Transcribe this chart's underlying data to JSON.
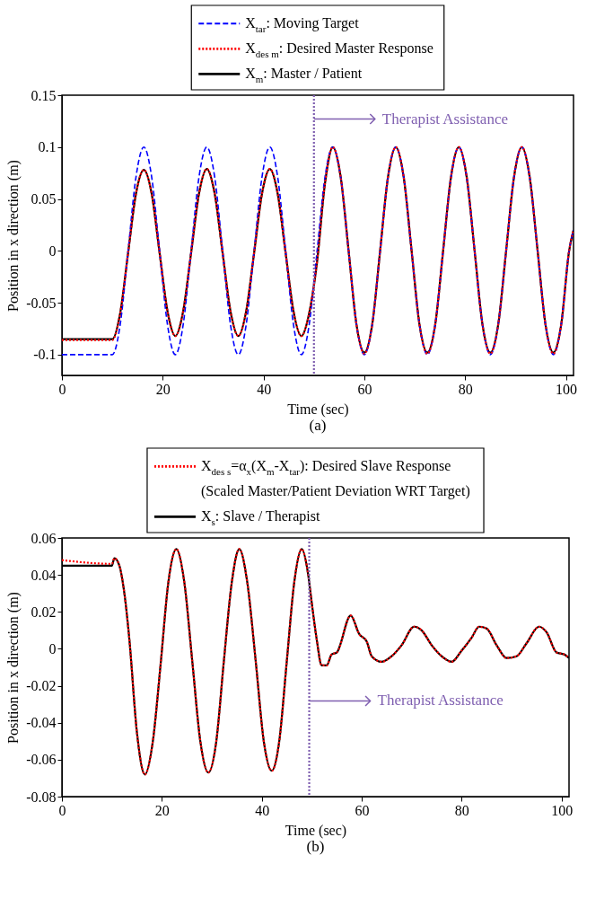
{
  "chart_data": [
    {
      "type": "line",
      "xlabel": "Time (sec)",
      "ylabel": "Position in x direction (m)",
      "xlim": [
        0,
        101.5
      ],
      "xticks": [
        0,
        20,
        40,
        60,
        80,
        100
      ],
      "ylim": [
        -0.12,
        0.15
      ],
      "yticks": [
        -0.1,
        -0.05,
        0,
        0.05,
        0.1,
        0.15
      ],
      "grid": false,
      "legend": "top",
      "marker": "none",
      "series": [
        {
          "name": "X$_{tar}$: Moving Target",
          "color": "#0000ff",
          "line_style": "dashed",
          "x": [
            0,
            10,
            11.56,
            13.13,
            14.69,
            16.25,
            17.81,
            19.38,
            20.94,
            22.5,
            24.06,
            25.63,
            27.19,
            28.75,
            30.31,
            31.88,
            33.44,
            35,
            36.56,
            38.13,
            39.69,
            41.25,
            42.81,
            44.38,
            45.94,
            47.5,
            49.06,
            50.63,
            52.19,
            53.75,
            55.31,
            56.88,
            58.44,
            60,
            61.56,
            63.13,
            64.69,
            66.25,
            67.81,
            69.38,
            70.94,
            72.5,
            74.06,
            75.63,
            77.19,
            78.75,
            80.31,
            81.88,
            83.44,
            85,
            86.56,
            88.13,
            89.69,
            91.25,
            92.81,
            94.38,
            95.94,
            97.5,
            99.06,
            100.63,
            101.5
          ],
          "values": [
            -0.1,
            -0.1,
            -0.071,
            0,
            0.071,
            0.1,
            0.071,
            0,
            -0.071,
            -0.1,
            -0.071,
            0,
            0.071,
            0.1,
            0.071,
            0,
            -0.071,
            -0.1,
            -0.071,
            0,
            0.071,
            0.1,
            0.071,
            0,
            -0.071,
            -0.1,
            -0.071,
            0,
            0.071,
            0.1,
            0.071,
            0,
            -0.071,
            -0.1,
            -0.071,
            0,
            0.071,
            0.1,
            0.071,
            0,
            -0.071,
            -0.1,
            -0.071,
            0,
            0.071,
            0.1,
            0.071,
            0,
            -0.071,
            -0.1,
            -0.071,
            0,
            0.071,
            0.1,
            0.071,
            0,
            -0.071,
            -0.1,
            -0.071,
            0,
            0.02
          ]
        },
        {
          "name": "X$_{des m}$: Desired Master Response",
          "color": "#ff0000",
          "line_style": "dotted",
          "x": [
            0,
            10,
            11.56,
            13.13,
            14.69,
            16.25,
            17.81,
            19.38,
            20.94,
            22.5,
            24.06,
            25.63,
            27.19,
            28.75,
            30.31,
            31.88,
            33.44,
            35,
            36.56,
            38.13,
            39.69,
            41.25,
            42.81,
            44.38,
            45.94,
            47.5,
            49.06,
            50.63,
            52.19,
            53.75,
            55.31,
            56.88,
            58.44,
            60,
            61.56,
            63.13,
            64.69,
            66.25,
            67.81,
            69.38,
            70.94,
            72.5,
            74.06,
            75.63,
            77.19,
            78.75,
            80.31,
            81.88,
            83.44,
            85,
            86.56,
            88.13,
            89.69,
            91.25,
            92.81,
            94.38,
            95.94,
            97.5,
            99.06,
            100.63,
            101.5
          ],
          "values": [
            -0.086,
            -0.086,
            -0.06,
            -0.002,
            0.055,
            0.078,
            0.055,
            -0.002,
            -0.058,
            -0.082,
            -0.058,
            -0.002,
            0.055,
            0.079,
            0.055,
            -0.002,
            -0.058,
            -0.082,
            -0.058,
            -0.002,
            0.055,
            0.079,
            0.055,
            -0.002,
            -0.058,
            -0.082,
            -0.06,
            -0.01,
            0.065,
            0.1,
            0.071,
            0,
            -0.071,
            -0.099,
            -0.071,
            0,
            0.071,
            0.1,
            0.071,
            0,
            -0.071,
            -0.099,
            -0.071,
            0,
            0.071,
            0.1,
            0.071,
            0,
            -0.071,
            -0.099,
            -0.071,
            0,
            0.071,
            0.1,
            0.071,
            0,
            -0.071,
            -0.099,
            -0.071,
            0,
            0.02
          ]
        },
        {
          "name": "X$_{m}$: Master / Patient",
          "color": "#000000",
          "line_style": "solid",
          "x": [
            0,
            10,
            11.56,
            13.13,
            14.69,
            16.25,
            17.81,
            19.38,
            20.94,
            22.5,
            24.06,
            25.63,
            27.19,
            28.75,
            30.31,
            31.88,
            33.44,
            35,
            36.56,
            38.13,
            39.69,
            41.25,
            42.81,
            44.38,
            45.94,
            47.5,
            49.06,
            50.63,
            52.19,
            53.75,
            55.31,
            56.88,
            58.44,
            60,
            61.56,
            63.13,
            64.69,
            66.25,
            67.81,
            69.38,
            70.94,
            72.5,
            74.06,
            75.63,
            77.19,
            78.75,
            80.31,
            81.88,
            83.44,
            85,
            86.56,
            88.13,
            89.69,
            91.25,
            92.81,
            94.38,
            95.94,
            97.5,
            99.06,
            100.63,
            101.5
          ],
          "values": [
            -0.085,
            -0.085,
            -0.06,
            -0.002,
            0.055,
            0.078,
            0.055,
            -0.002,
            -0.058,
            -0.082,
            -0.058,
            -0.002,
            0.055,
            0.079,
            0.055,
            -0.002,
            -0.058,
            -0.082,
            -0.058,
            -0.002,
            0.055,
            0.079,
            0.055,
            -0.002,
            -0.058,
            -0.082,
            -0.06,
            -0.01,
            0.065,
            0.1,
            0.071,
            0,
            -0.071,
            -0.098,
            -0.071,
            0,
            0.071,
            0.1,
            0.071,
            0,
            -0.071,
            -0.098,
            -0.071,
            0,
            0.071,
            0.1,
            0.071,
            0,
            -0.071,
            -0.098,
            -0.071,
            0,
            0.071,
            0.1,
            0.071,
            0,
            -0.071,
            -0.098,
            -0.071,
            0,
            0.02
          ]
        }
      ],
      "ref_lines": [
        {
          "axis": "x",
          "value": 50,
          "color": "#7f5fb0",
          "line_style": "dotted",
          "label": "Therapist Assistance"
        }
      ],
      "annotations": [
        "(a)"
      ]
    },
    {
      "type": "line",
      "xlabel": "Time (sec)",
      "ylabel": "Position in x direction (m)",
      "xlim": [
        0,
        101.5
      ],
      "xticks": [
        0,
        20,
        40,
        60,
        80,
        100
      ],
      "ylim": [
        -0.08,
        0.06
      ],
      "yticks": [
        -0.08,
        -0.06,
        -0.04,
        -0.02,
        0,
        0.02,
        0.04,
        0.06
      ],
      "grid": false,
      "legend": "top",
      "marker": "none",
      "series": [
        {
          "name": "X$_{des s}$=α$_{x}$(X$_{m}$-X$_{tar}$): Desired Slave Response\n(Scaled Master/Patient Deviation WRT Target)",
          "color": "#ff0000",
          "line_style": "dotted",
          "x": [
            0,
            10,
            10.5,
            11.5,
            12.5,
            13.5,
            15,
            16.6,
            18.2,
            19.8,
            21.3,
            22.9,
            24.5,
            26.1,
            27.7,
            29.3,
            30.9,
            32.4,
            34,
            35.5,
            37.1,
            38.8,
            40.4,
            42,
            43.5,
            45,
            46.5,
            48,
            49.3,
            50,
            51,
            52,
            53,
            54,
            55,
            57.8,
            59.5,
            61,
            62,
            64,
            66,
            68,
            70.5,
            72,
            74,
            76,
            78,
            80,
            82,
            83.5,
            85,
            87,
            89,
            91,
            93,
            95.5,
            97,
            99,
            100.5,
            101.5
          ],
          "values": [
            0.048,
            0.046,
            0.049,
            0.045,
            0.03,
            0.005,
            -0.045,
            -0.068,
            -0.05,
            -0.007,
            0.036,
            0.054,
            0.036,
            -0.007,
            -0.05,
            -0.067,
            -0.05,
            -0.007,
            0.036,
            0.054,
            0.036,
            -0.007,
            -0.05,
            -0.066,
            -0.05,
            -0.007,
            0.036,
            0.054,
            0.04,
            0.025,
            0.005,
            -0.009,
            -0.009,
            -0.003,
            -0.002,
            0.018,
            0.008,
            0.004,
            -0.004,
            -0.007,
            -0.004,
            0.002,
            0.012,
            0.01,
            0.002,
            -0.004,
            -0.007,
            -0.001,
            0.006,
            0.012,
            0.011,
            0.002,
            -0.005,
            -0.004,
            0.003,
            0.012,
            0.009,
            -0.002,
            -0.003,
            -0.005
          ]
        },
        {
          "name": "X$_{s}$: Slave / Therapist",
          "color": "#000000",
          "line_style": "solid",
          "x": [
            0,
            10,
            10.5,
            11.5,
            12.5,
            13.5,
            15,
            16.6,
            18.2,
            19.8,
            21.3,
            22.9,
            24.5,
            26.1,
            27.7,
            29.3,
            30.9,
            32.4,
            34,
            35.5,
            37.1,
            38.8,
            40.4,
            42,
            43.5,
            45,
            46.5,
            48,
            49.3,
            50,
            51,
            52,
            53,
            54,
            55,
            57.8,
            59.5,
            61,
            62,
            64,
            66,
            68,
            70.5,
            72,
            74,
            76,
            78,
            80,
            82,
            83.5,
            85,
            87,
            89,
            91,
            93,
            95.5,
            97,
            99,
            100.5,
            101.5
          ],
          "values": [
            0.045,
            0.045,
            0.049,
            0.045,
            0.03,
            0.005,
            -0.045,
            -0.068,
            -0.05,
            -0.007,
            0.036,
            0.054,
            0.036,
            -0.007,
            -0.05,
            -0.067,
            -0.05,
            -0.007,
            0.036,
            0.054,
            0.036,
            -0.007,
            -0.05,
            -0.066,
            -0.05,
            -0.007,
            0.036,
            0.054,
            0.04,
            0.025,
            0.005,
            -0.009,
            -0.009,
            -0.003,
            -0.002,
            0.018,
            0.008,
            0.004,
            -0.004,
            -0.007,
            -0.004,
            0.002,
            0.012,
            0.01,
            0.002,
            -0.004,
            -0.007,
            -0.001,
            0.006,
            0.012,
            0.011,
            0.002,
            -0.005,
            -0.004,
            0.003,
            0.012,
            0.009,
            -0.002,
            -0.003,
            -0.005
          ]
        }
      ],
      "ref_lines": [
        {
          "axis": "x",
          "value": 49.5,
          "color": "#7f5fb0",
          "line_style": "dotted",
          "label": "Therapist Assistance"
        }
      ],
      "annotations": [
        "(b)"
      ]
    }
  ]
}
